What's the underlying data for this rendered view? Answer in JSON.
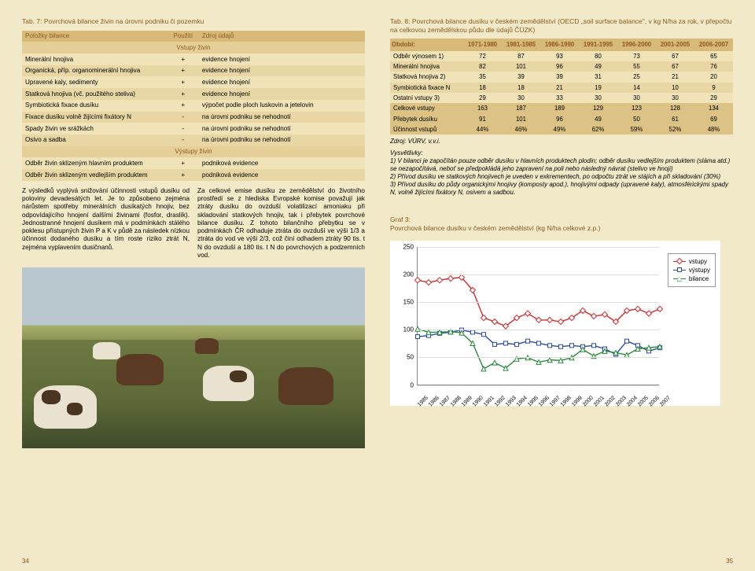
{
  "left": {
    "table7_title": "Tab. 7: Povrchová bilance živin na úrovni podniku či pozemku",
    "headers": {
      "item": "Položky bilance",
      "use": "Použití",
      "source": "Zdroj údajů"
    },
    "section_in": "Vstupy živin",
    "section_out": "Výstupy živin",
    "rows_in": [
      {
        "item": "Minerální hnojiva",
        "use": "+",
        "src": "evidence hnojení"
      },
      {
        "item": "Organická, příp. organominerální hnojiva",
        "use": "+",
        "src": "evidence hnojení"
      },
      {
        "item": "Upravené kaly, sedimenty",
        "use": "+",
        "src": "evidence hnojení"
      },
      {
        "item": "Statková hnojiva (vč. použitého steliva)",
        "use": "+",
        "src": "evidence hnojení"
      },
      {
        "item": "Symbiotická fixace dusíku",
        "use": "+",
        "src": "výpočet podle ploch luskovin a jetelovin"
      },
      {
        "item": "Fixace dusíku volně žijícími fixátory N",
        "use": "-",
        "src": "na úrovni podniku se nehodnotí"
      },
      {
        "item": "Spady živin ve srážkách",
        "use": "-",
        "src": "na úrovni podniku se nehodnotí"
      },
      {
        "item": "Osivo a sadba",
        "use": "-",
        "src": "na úrovni podniku se nehodnotí"
      }
    ],
    "rows_out": [
      {
        "item": "Odběr živin sklizeným hlavním produktem",
        "use": "+",
        "src": "podniková evidence"
      },
      {
        "item": "Odběr živin sklizeným vedlejším produktem",
        "use": "+",
        "src": "podniková evidence"
      }
    ],
    "para1": "Z výsledků vyplývá snižování účinnosti vstupů dusíku od poloviny devadesátých let. Je to způsobeno zejména nárůstem spotřeby minerálních dusíkatých hnojiv, bez odpovídajícího hnojení dalšími živinami (fosfor, draslík). Jednostranné hnojení dusíkem má v podmínkách stálého poklesu přístupných živin P a K v půdě za následek nízkou účinnost dodaného dusíku a tím roste riziko ztrát N, zejména vyplavením dusičnanů.",
    "para2": "Za celkové emise dusíku ze zemědělství do životního prostředí se z hlediska Evropské komise považují jak ztráty dusíku do ovzduší volatilizací amoniaku při skladování statkových hnojiv, tak i přebytek povrchové bilance dusíku. Z tohoto bilančního přebytku se v podmínkách ČR odhaduje ztráta do ovzduší ve výši 1/3 a ztráta do vod ve výši 2/3, což činí odhadem ztráty 90 tis. t N do ovzduší a 180 tis. t N do povrchových a podzemních vod.",
    "page_num": "34"
  },
  "right": {
    "table8_title": "Tab. 8: Povrchová bilance dusíku v českém zemědělství (OECD „soil surface balance\", v kg N/ha za rok, v přepočtu na celkovou zemědělskou půdu dle údajů ČÚZK)",
    "period_label": "Období:",
    "periods": [
      "1971-1980",
      "1981-1985",
      "1986-1990",
      "1991-1995",
      "1996-2000",
      "2001-2005",
      "2006-2007"
    ],
    "rows": [
      {
        "label": "Odběr výnosem 1)",
        "vals": [
          72,
          87,
          93,
          80,
          73,
          67,
          65
        ],
        "hl": false
      },
      {
        "label": "Minerální hnojiva",
        "vals": [
          82,
          101,
          96,
          49,
          55,
          67,
          76
        ],
        "hl": false
      },
      {
        "label": "Statková hnojiva 2)",
        "vals": [
          35,
          39,
          39,
          31,
          25,
          21,
          20
        ],
        "hl": false
      },
      {
        "label": "Symbiotická fixace N",
        "vals": [
          18,
          18,
          21,
          19,
          14,
          10,
          9
        ],
        "hl": false
      },
      {
        "label": "Ostatní vstupy 3)",
        "vals": [
          29,
          30,
          33,
          30,
          30,
          30,
          29
        ],
        "hl": false
      },
      {
        "label": "Celkové vstupy",
        "vals": [
          163,
          187,
          189,
          129,
          123,
          128,
          134
        ],
        "hl": true
      },
      {
        "label": "Přebytek dusíku",
        "vals": [
          91,
          101,
          96,
          49,
          50,
          61,
          69
        ],
        "hl": true
      },
      {
        "label": "Účinnost vstupů",
        "vals": [
          "44%",
          "46%",
          "49%",
          "62%",
          "59%",
          "52%",
          "48%"
        ],
        "hl": true
      }
    ],
    "source": "Zdroj: VÚRV, v.v.i.",
    "expl_title": "Vysvětlivky:",
    "expl_body": "1) V bilanci je započítán pouze odběr dusíku v hlavních produktech plodin; odběr dusíku vedlejším produktem (sláma atd.) se nezapočítává, neboť se předpokládá jeho zapravení na poli nebo následný návrat (stelivo ve hnoji)\n2) Přívod dusíku ve statkových hnojivech je uveden v exkrementech, po odpočtu ztrát ve stájích a při skladování (30%)\n3) Přívod dusíku do půdy organickými hnojivy (komposty apod.), hnojivými odpady (upravené kaly), atmosférickými spady N, volně žijícími fixátory N, osivem a sadbou.",
    "chart_title": "Graf 3:\nPovrchová bilance dusíku v českém zemědělství (kg N/ha celkové z.p.)",
    "chart": {
      "type": "line",
      "background": "#ffffff",
      "grid_color": "#dddddd",
      "axis_color": "#888888",
      "ylim": [
        0,
        250
      ],
      "ytick_step": 50,
      "x_labels": [
        "1985",
        "1986",
        "1987",
        "1988",
        "1989",
        "1990",
        "1991",
        "1992",
        "1993",
        "1994",
        "1995",
        "1996",
        "1997",
        "1998",
        "1999",
        "2000",
        "2001",
        "2002",
        "2003",
        "2004",
        "2005",
        "2006",
        "2007"
      ],
      "series": [
        {
          "name": "vstupy",
          "color": "#d42a2a",
          "marker": "diamond",
          "values": [
            190,
            186,
            190,
            193,
            195,
            172,
            122,
            115,
            107,
            122,
            130,
            118,
            118,
            115,
            122,
            135,
            125,
            128,
            115,
            135,
            138,
            130,
            138
          ]
        },
        {
          "name": "výstupy",
          "color": "#2a4aa8",
          "marker": "square",
          "values": [
            88,
            90,
            94,
            96,
            100,
            96,
            92,
            74,
            76,
            74,
            80,
            76,
            72,
            70,
            72,
            70,
            72,
            66,
            56,
            80,
            72,
            62,
            68
          ]
        },
        {
          "name": "bilance",
          "color": "#2a8a3a",
          "marker": "triangle",
          "values": [
            102,
            96,
            96,
            97,
            95,
            76,
            30,
            41,
            31,
            48,
            50,
            42,
            46,
            45,
            50,
            65,
            53,
            62,
            59,
            55,
            66,
            68,
            70
          ]
        }
      ],
      "legend_labels": {
        "vstupy": "vstupy",
        "vystupy": "výstupy",
        "bilance": "bilance"
      },
      "fontsize_axis": 8
    },
    "page_num": "35"
  }
}
